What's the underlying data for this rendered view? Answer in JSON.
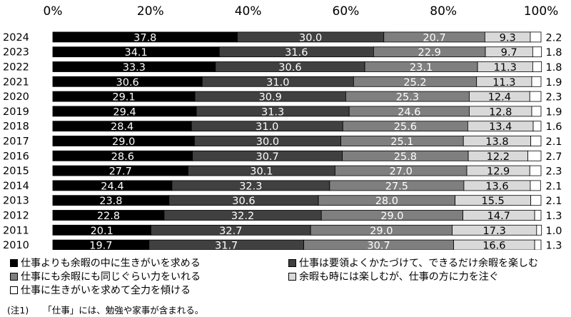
{
  "chart_data": {
    "type": "bar",
    "orientation": "horizontal",
    "stacked": true,
    "percent_axis": true,
    "xlim": [
      0,
      100
    ],
    "x_ticks": [
      "0%",
      "20%",
      "40%",
      "60%",
      "80%",
      "100%"
    ],
    "x_tick_values": [
      0,
      20,
      40,
      60,
      80,
      100
    ],
    "categories": [
      "2024",
      "2023",
      "2022",
      "2021",
      "2020",
      "2019",
      "2018",
      "2017",
      "2016",
      "2015",
      "2014",
      "2013",
      "2012",
      "2011",
      "2010"
    ],
    "series": [
      {
        "name": "仕事よりも余暇の中に生きがいを求める",
        "color": "#000000",
        "text_color": "#ffffff",
        "values": [
          37.8,
          34.1,
          33.3,
          30.6,
          29.1,
          29.4,
          28.4,
          29.0,
          28.6,
          27.7,
          24.4,
          23.8,
          22.8,
          20.1,
          19.7
        ]
      },
      {
        "name": "仕事は要領よくかたづけて、できるだけ余暇を楽しむ",
        "color": "#404040",
        "text_color": "#ffffff",
        "values": [
          30.0,
          31.6,
          30.6,
          31.0,
          30.9,
          31.3,
          31.0,
          30.0,
          30.7,
          30.1,
          32.3,
          30.6,
          32.2,
          32.7,
          31.7
        ]
      },
      {
        "name": "仕事にも余暇にも同じぐらい力をいれる",
        "color": "#7f7f7f",
        "text_color": "#ffffff",
        "values": [
          20.7,
          22.9,
          23.1,
          25.2,
          25.3,
          24.6,
          25.6,
          25.1,
          25.8,
          27.0,
          27.5,
          28.0,
          29.0,
          29.0,
          30.7
        ]
      },
      {
        "name": "余暇も時には楽しむが、仕事の方に力を注ぐ",
        "color": "#d9d9d9",
        "text_color": "#000000",
        "values": [
          9.3,
          9.7,
          11.3,
          11.3,
          12.4,
          12.8,
          13.4,
          13.8,
          12.2,
          12.9,
          13.6,
          15.5,
          14.7,
          17.3,
          16.6
        ]
      },
      {
        "name": "仕事に生きがいを求めて全力を傾ける",
        "color": "#ffffff",
        "text_color": "#000000",
        "values": [
          2.2,
          1.8,
          1.8,
          1.9,
          2.3,
          1.9,
          1.6,
          2.1,
          2.7,
          2.3,
          2.1,
          2.1,
          1.3,
          1.0,
          1.3
        ]
      }
    ],
    "legend_position": "bottom",
    "grid": false
  },
  "footnote": {
    "mark": "(注1)",
    "text": "「仕事」には、勉強や家事が含まれる。"
  }
}
